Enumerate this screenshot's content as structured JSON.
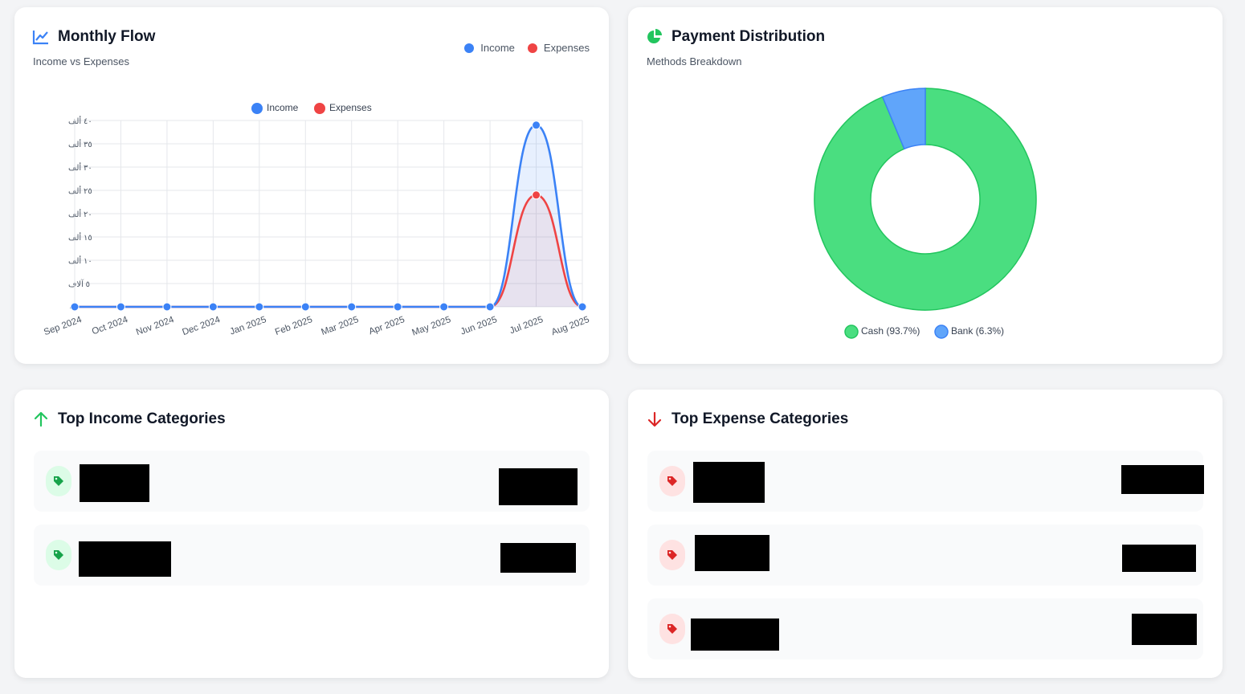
{
  "monthly_flow": {
    "title": "Monthly Flow",
    "subtitle": "Income vs Expenses",
    "legend_top": {
      "income": "Income",
      "expenses": "Expenses"
    },
    "icon": "line-chart-icon"
  },
  "payment_distribution": {
    "title": "Payment Distribution",
    "subtitle": "Methods Breakdown",
    "icon": "pie-chart-icon"
  },
  "top_income": {
    "title": "Top Income Categories",
    "icon": "arrow-up-icon",
    "items": [
      {
        "name": "",
        "amount": ""
      },
      {
        "name": "",
        "amount": ""
      }
    ]
  },
  "top_expense": {
    "title": "Top Expense Categories",
    "icon": "arrow-down-icon",
    "items": [
      {
        "name": "",
        "amount": ""
      },
      {
        "name": "",
        "amount": ""
      },
      {
        "name": "",
        "amount": ""
      }
    ]
  },
  "colors": {
    "income": "#3b82f6",
    "expenses": "#ef4444",
    "cash": "#4ade80",
    "bank": "#60a5fa",
    "green_accent": "#22c55e",
    "red_accent": "#dc2626"
  },
  "chart_data": [
    {
      "type": "line",
      "categories": [
        "Sep 2024",
        "Oct 2024",
        "Nov 2024",
        "Dec 2024",
        "Jan 2025",
        "Feb 2025",
        "Mar 2025",
        "Apr 2025",
        "May 2025",
        "Jun 2025",
        "Jul 2025",
        "Aug 2025"
      ],
      "series": [
        {
          "name": "Income",
          "values": [
            0,
            0,
            0,
            0,
            0,
            0,
            0,
            0,
            0,
            0,
            39000,
            0
          ]
        },
        {
          "name": "Expenses",
          "values": [
            0,
            0,
            0,
            0,
            0,
            0,
            0,
            0,
            0,
            0,
            24000,
            0
          ]
        }
      ],
      "ylim": [
        0,
        40000
      ],
      "yticks": [
        {
          "value": 0,
          "label": "٠"
        },
        {
          "value": 5000,
          "label": "٥ آلاف"
        },
        {
          "value": 10000,
          "label": "١٠ ألف"
        },
        {
          "value": 15000,
          "label": "١٥ ألف"
        },
        {
          "value": 20000,
          "label": "٢٠ ألف"
        },
        {
          "value": 25000,
          "label": "٢٥ ألف"
        },
        {
          "value": 30000,
          "label": "٣٠ ألف"
        },
        {
          "value": 35000,
          "label": "٣٥ ألف"
        },
        {
          "value": 40000,
          "label": "٤٠ ألف"
        }
      ],
      "legend": [
        "Income",
        "Expenses"
      ],
      "legend_position": "top",
      "grid": true
    },
    {
      "type": "pie",
      "donut": true,
      "slices": [
        {
          "label": "Cash (93.7%)",
          "value": 93.7
        },
        {
          "label": "Bank (6.3%)",
          "value": 6.3
        }
      ],
      "legend_position": "bottom"
    }
  ]
}
